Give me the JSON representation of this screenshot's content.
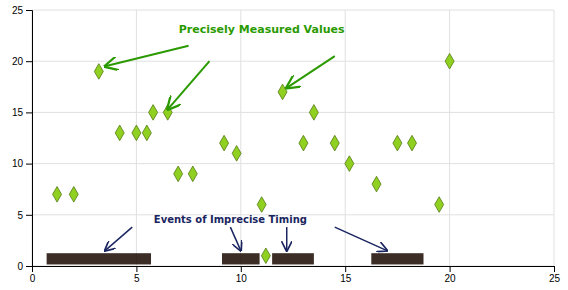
{
  "chart_data": {
    "type": "scatter",
    "x": [
      1.2,
      2.0,
      3.2,
      4.2,
      5.0,
      5.5,
      5.8,
      6.5,
      7.0,
      7.7,
      9.2,
      9.8,
      11.0,
      11.2,
      12.0,
      13.0,
      13.5,
      14.5,
      15.2,
      16.5,
      17.5,
      18.2,
      20.0,
      19.5
    ],
    "values": [
      7,
      7,
      19,
      13,
      13,
      13,
      15,
      15,
      9,
      9,
      12,
      11,
      6,
      1,
      17,
      12,
      15,
      12,
      10,
      8,
      12,
      12,
      20,
      6
    ],
    "color": "#90D020",
    "marker": "diamond",
    "intervals": {
      "x": [
        3.2,
        10.0,
        12.5,
        17.5
      ],
      "widths": [
        5.0,
        1.8,
        2.0,
        2.5
      ],
      "y": 0.7,
      "height": 1.1,
      "color": "#1A0800"
    },
    "annotations": [
      {
        "text": "Precisely Measured Values",
        "x": 11.0,
        "y": 23.0,
        "color": "#2A9A00",
        "arrows": [
          {
            "from": [
              7.5,
              21.5
            ],
            "to": [
              3.5,
              19.5
            ]
          },
          {
            "from": [
              8.5,
              20.0
            ],
            "to": [
              6.5,
              15.3
            ]
          },
          {
            "from": [
              14.5,
              20.5
            ],
            "to": [
              12.2,
              17.4
            ]
          }
        ]
      },
      {
        "text": "Events of Imprecise Timing",
        "x": 9.5,
        "y": 4.5,
        "color": "#1A2560",
        "arrows": [
          {
            "from": [
              4.8,
              3.8
            ],
            "to": [
              3.5,
              1.5
            ]
          },
          {
            "from": [
              9.5,
              3.8
            ],
            "to": [
              10.0,
              1.5
            ]
          },
          {
            "from": [
              12.2,
              3.8
            ],
            "to": [
              12.2,
              1.5
            ]
          },
          {
            "from": [
              14.5,
              3.8
            ],
            "to": [
              17.0,
              1.5
            ]
          }
        ]
      }
    ],
    "xlim": [
      0,
      25
    ],
    "ylim": [
      0,
      25
    ],
    "xticks": [
      0,
      5,
      10,
      15,
      20,
      25
    ],
    "yticks": [
      0,
      5,
      10,
      15,
      20,
      25
    ],
    "grid": true
  }
}
